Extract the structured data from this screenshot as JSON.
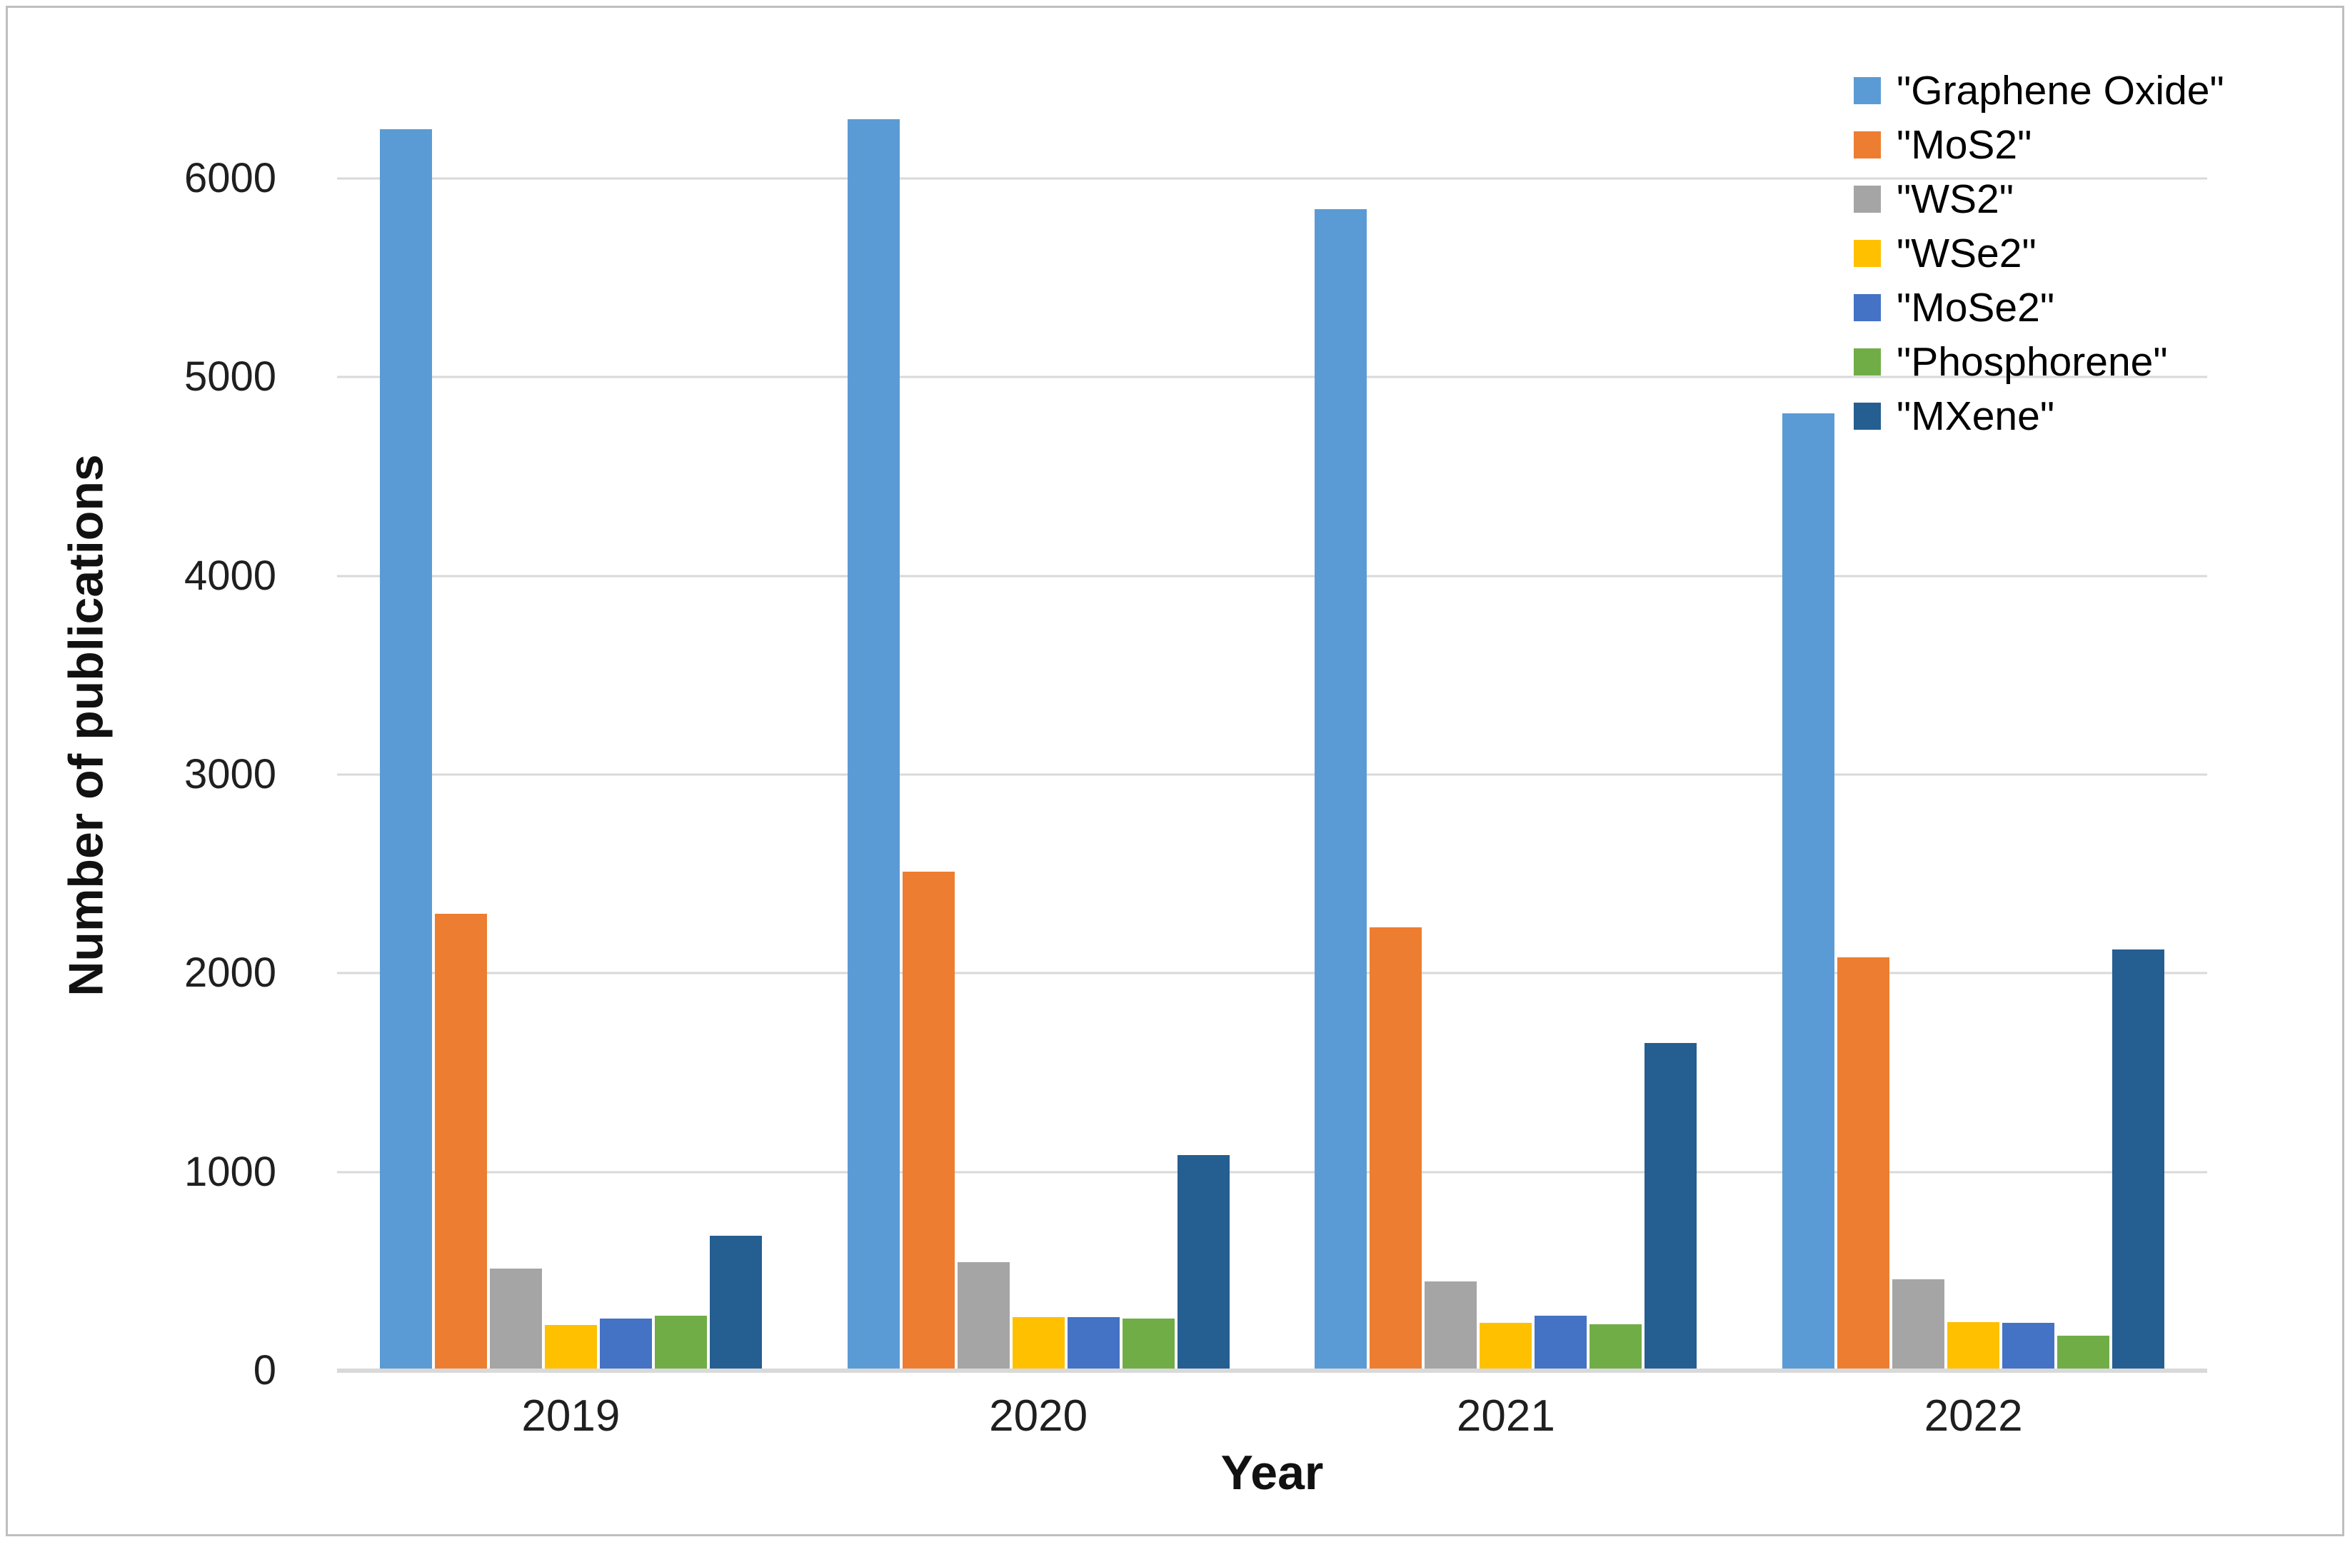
{
  "chart_data": {
    "type": "bar",
    "title": "",
    "xlabel": "Year",
    "ylabel": "Number of publications",
    "categories": [
      "2019",
      "2020",
      "2021",
      "2022"
    ],
    "series": [
      {
        "name": "\"Graphene Oxide\"",
        "color": "#5B9BD5",
        "values": [
          6250,
          6300,
          5845,
          4820
        ]
      },
      {
        "name": "\"MoS2\"",
        "color": "#ED7D31",
        "values": [
          2300,
          2510,
          2230,
          2080
        ]
      },
      {
        "name": "\"WS2\"",
        "color": "#A5A5A5",
        "values": [
          515,
          545,
          450,
          460
        ]
      },
      {
        "name": "\"WSe2\"",
        "color": "#FFC000",
        "values": [
          230,
          270,
          240,
          245
        ]
      },
      {
        "name": "\"MoSe2\"",
        "color": "#4472C4",
        "values": [
          262,
          270,
          277,
          240
        ]
      },
      {
        "name": "\"Phosphorene\"",
        "color": "#70AD47",
        "values": [
          275,
          262,
          234,
          176
        ]
      },
      {
        "name": "\"MXene\"",
        "color": "#255E91",
        "values": [
          680,
          1085,
          1650,
          2120
        ]
      }
    ],
    "y_ticks": [
      0,
      1000,
      2000,
      3000,
      4000,
      5000,
      6000
    ],
    "ylim": [
      0,
      6500
    ],
    "grid": true,
    "legend_position": "top-right",
    "colors": {
      "gridline": "#D9D9D9",
      "axis_text": "#1F1F1F",
      "title_text": "#111111"
    }
  }
}
